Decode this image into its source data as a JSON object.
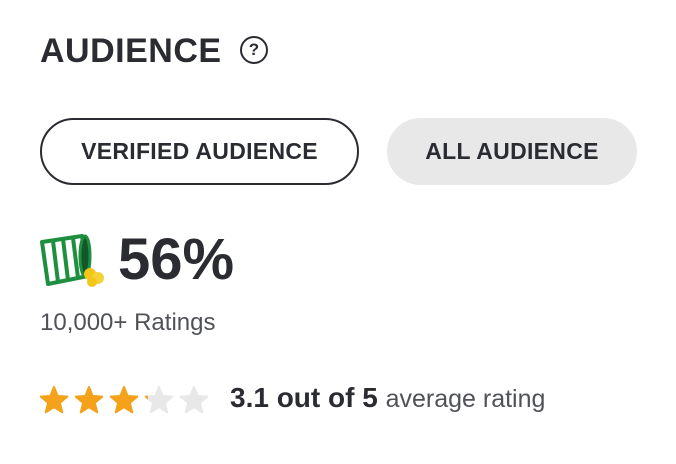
{
  "header": {
    "title": "AUDIENCE",
    "help": "?"
  },
  "tabs": [
    "VERIFIED AUDIENCE",
    "ALL AUDIENCE"
  ],
  "score": {
    "text": "56%",
    "ratings": "10,000+ Ratings"
  },
  "rating": {
    "score": 3.1,
    "out_of": 5,
    "text": "3.1 out of 5",
    "caption": "average rating"
  }
}
